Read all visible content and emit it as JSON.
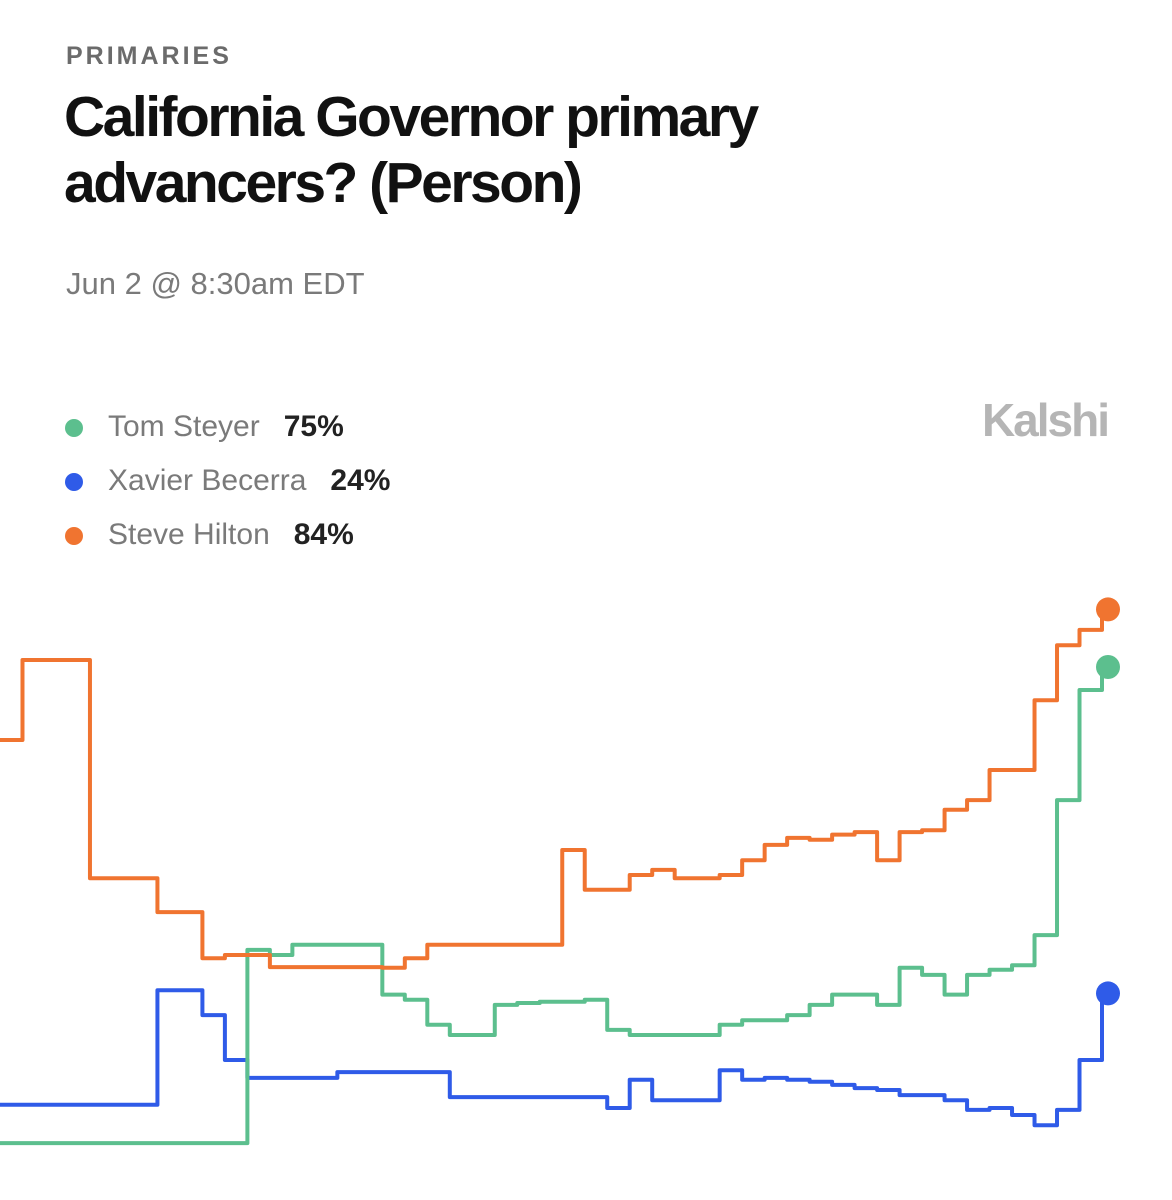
{
  "chart_data": {
    "type": "line",
    "kicker": "PRIMARIES",
    "title": "California Governor primary advancers? (Person)",
    "subtitle": "Jun 2 @ 8:30am EDT",
    "brand": "Kalshi",
    "ylim": [
      0,
      90
    ],
    "series": [
      {
        "name": "Tom Steyer",
        "color": "#5cbf8e",
        "legend_value": 75,
        "legend_label": "75%",
        "values": [
          0.6,
          0.6,
          0.6,
          0.6,
          0.6,
          0.6,
          0.6,
          0.6,
          0.6,
          0.6,
          0.6,
          30.8,
          30,
          31.6,
          31.6,
          31.6,
          31.6,
          23.8,
          23,
          19.1,
          17.5,
          17.5,
          22.2,
          22.5,
          22.7,
          22.7,
          23,
          18.3,
          17.5,
          17.5,
          17.5,
          17.5,
          19.1,
          19.8,
          19.8,
          20.6,
          22.2,
          23.8,
          23.8,
          22.2,
          28,
          26.9,
          23.8,
          26.9,
          27.7,
          28.4,
          33.1,
          54.2,
          71.4,
          75
        ]
      },
      {
        "name": "Xavier Becerra",
        "color": "#2f5be8",
        "legend_value": 24,
        "legend_label": "24%",
        "values": [
          6.6,
          6.6,
          6.6,
          6.6,
          6.6,
          6.6,
          6.6,
          24.5,
          24.5,
          20.6,
          13.6,
          10.8,
          10.8,
          10.8,
          10.8,
          11.7,
          11.7,
          11.7,
          11.7,
          11.7,
          7.8,
          7.8,
          7.8,
          7.8,
          7.8,
          7.8,
          7.8,
          6.1,
          10.5,
          7.3,
          7.3,
          7.3,
          12,
          10.5,
          10.8,
          10.5,
          10.2,
          9.7,
          9.2,
          8.9,
          8.1,
          8.1,
          7.3,
          5.8,
          6.1,
          5,
          3.4,
          5.8,
          13.6,
          24
        ]
      },
      {
        "name": "Steve Hilton",
        "color": "#f07430",
        "legend_value": 84,
        "legend_label": "84%",
        "values": [
          63.6,
          76.1,
          76.1,
          76.1,
          42,
          42,
          42,
          36.7,
          36.7,
          29.5,
          30,
          30,
          28.1,
          28.1,
          28.1,
          28.1,
          28.1,
          28,
          29.5,
          31.6,
          31.6,
          31.6,
          31.6,
          31.6,
          31.6,
          46.4,
          40.2,
          40.2,
          42.5,
          43.3,
          42,
          42,
          42.5,
          44.8,
          47.2,
          48.3,
          48,
          48.8,
          49.2,
          44.8,
          49.2,
          49.5,
          52.7,
          54.2,
          58.9,
          58.9,
          69.8,
          78.4,
          80.8,
          84
        ]
      }
    ]
  }
}
